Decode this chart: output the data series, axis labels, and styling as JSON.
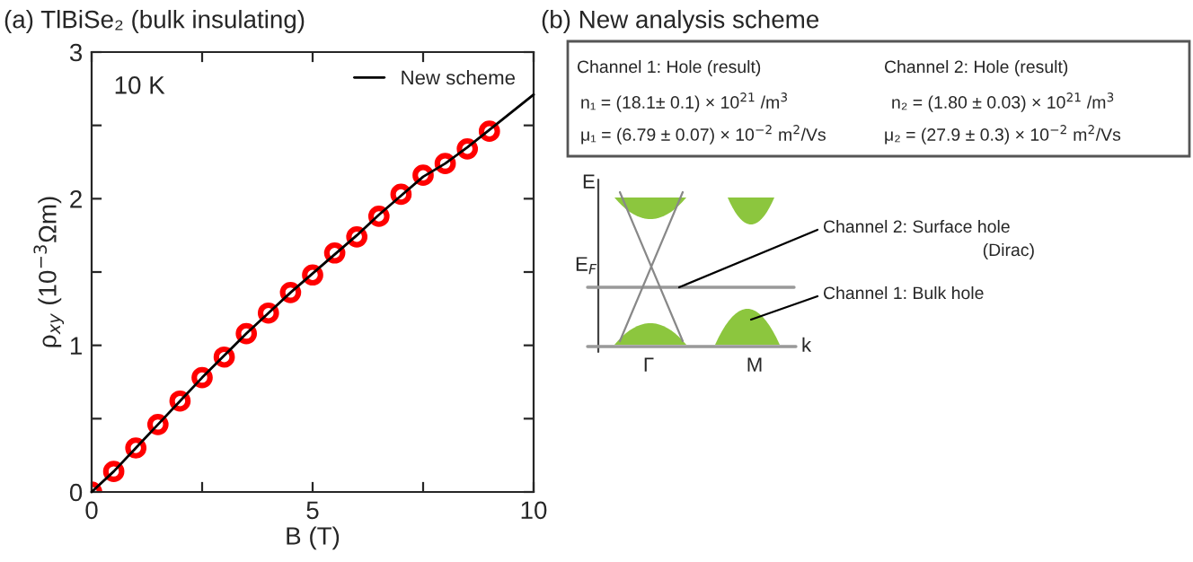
{
  "chart_data": [
    {
      "type": "line",
      "title": "(a) TlBiSe₂ (bulk insulating)",
      "xlabel": "B (T)",
      "ylabel": "ρ$_{xy}$ (10$^{−3}$Ωm)",
      "xlim": [
        0,
        10
      ],
      "ylim": [
        0,
        3
      ],
      "xticks": [
        0,
        {
          "value": 2.5,
          "label": null
        },
        5,
        {
          "value": 7.5,
          "label": null
        },
        10
      ],
      "yticks": [
        0,
        {
          "value": 0.5,
          "label": null
        },
        1,
        {
          "value": 1.5,
          "label": null
        },
        2,
        {
          "value": 2.5,
          "label": null
        },
        3
      ],
      "grid": false,
      "legend": "top right",
      "annotations": [
        "10 K"
      ],
      "series": [
        {
          "type": "scatter",
          "color": "#ff0000",
          "marker": "circle",
          "x": [
            0,
            0.5,
            1,
            1.5,
            2,
            2.5,
            3,
            3.5,
            4,
            4.5,
            5,
            5.5,
            6,
            6.5,
            7,
            7.5,
            8,
            8.5,
            9
          ],
          "values": [
            0,
            0.14,
            0.3,
            0.46,
            0.62,
            0.78,
            0.92,
            1.08,
            1.22,
            1.36,
            1.48,
            1.63,
            1.74,
            1.88,
            2.03,
            2.16,
            2.24,
            2.34,
            2.46
          ]
        },
        {
          "type": "line",
          "name": "New scheme",
          "color": "#000000",
          "x": [
            0,
            0.5,
            1,
            1.5,
            2,
            2.5,
            3,
            3.5,
            4,
            4.5,
            5,
            5.5,
            6,
            6.5,
            7,
            7.5,
            8,
            8.5,
            9,
            10
          ],
          "values": [
            0,
            0.14,
            0.3,
            0.46,
            0.62,
            0.78,
            0.93,
            1.08,
            1.22,
            1.36,
            1.49,
            1.62,
            1.75,
            1.89,
            2.02,
            2.15,
            2.24,
            2.35,
            2.47,
            2.71
          ]
        }
      ]
    },
    {
      "type": "other",
      "title": "(b) New analysis scheme",
      "annotations": [
        "Channel 1: Hole (result)",
        "n₁ = (18.1± 0.1) × 10$^{21}$ /m$^{3}$",
        "μ₁ = (6.79 ± 0.07) × 10$^{−2}$ m$^{2}$/Vs",
        "Channel 2: Hole (result)",
        "n₂ = (1.80 ± 0.03) × 10$^{21}$ /m$^{3}$",
        "μ₂ = (27.9 ± 0.3) × 10$^{−2}$ m$^{2}$/Vs",
        "E",
        "E$_{F}$",
        "k",
        "Γ",
        "M",
        "Channel 2: Surface hole",
        "(Dirac)",
        "Channel 1: Bulk hole"
      ]
    }
  ]
}
